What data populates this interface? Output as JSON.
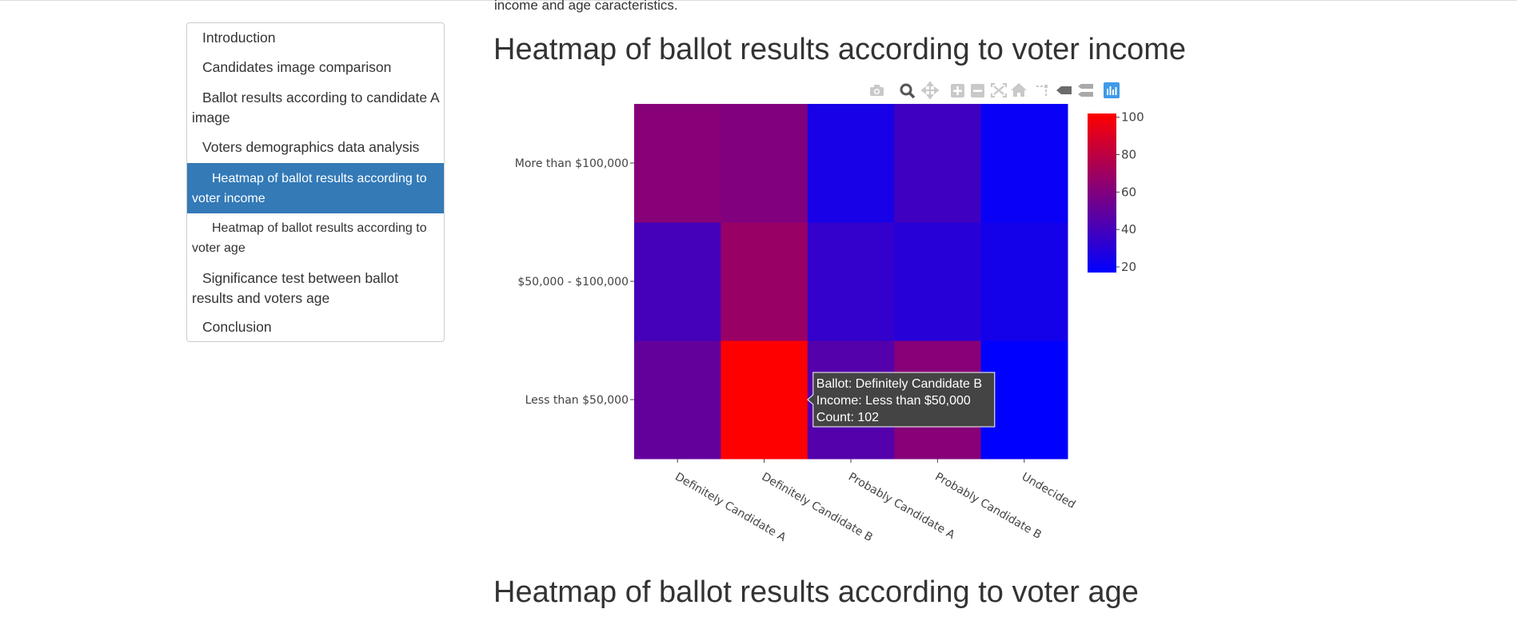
{
  "page": {
    "intro_tail": "income and age caracteristics.",
    "section_income_title": "Heatmap of ballot results according to voter income",
    "section_age_title": "Heatmap of ballot results according to voter age"
  },
  "toc": {
    "items": [
      {
        "label": "Introduction",
        "level": 1,
        "active": false
      },
      {
        "label": "Candidates image comparison",
        "level": 1,
        "active": false
      },
      {
        "label": "Ballot results according to candidate A image",
        "level": 1,
        "active": false
      },
      {
        "label": "Voters demographics data analysis",
        "level": 1,
        "active": false
      },
      {
        "label": "Heatmap of ballot results according to voter income",
        "level": 2,
        "active": true
      },
      {
        "label": "Heatmap of ballot results according to voter age",
        "level": 2,
        "active": false
      },
      {
        "label": "Significance test between ballot results and voters age",
        "level": 1,
        "active": false
      },
      {
        "label": "Conclusion",
        "level": 1,
        "active": false
      }
    ],
    "active_color": "#337ab7"
  },
  "modebar": {
    "buttons": [
      "camera-icon",
      "zoom-icon",
      "pan-icon",
      "zoom-in-icon",
      "zoom-out-icon",
      "autoscale-icon",
      "reset-axes-icon",
      "spike-lines-icon",
      "hover-closest-icon",
      "hover-compare-icon",
      "plotly-logo-icon"
    ],
    "active_button": "zoom-icon",
    "logo_color": "#3f9ae8"
  },
  "chart_data": {
    "type": "heatmap",
    "x": [
      "Definitely Candidate A",
      "Definitely Candidate B",
      "Probably Candidate A",
      "Probably Candidate B",
      "Undecided"
    ],
    "y": [
      "Less than $50,000",
      "$50,000 - $100,000",
      "More than $100,000"
    ],
    "z": [
      [
        50,
        102,
        45,
        62,
        17
      ],
      [
        40,
        68,
        34,
        30,
        24
      ],
      [
        62,
        60,
        25,
        38,
        20
      ]
    ],
    "colorscale": {
      "low": "#0000ff",
      "high": "#ff0000"
    },
    "zmin": 17,
    "zmax": 102,
    "colorbar_ticks": [
      20,
      40,
      60,
      80,
      100
    ],
    "tooltip": {
      "category": "Definitely Candidate B",
      "series": "Less than $50,000",
      "lines": [
        "Ballot: Definitely Candidate B",
        "Income: Less than $50,000",
        "Count: 102"
      ]
    }
  }
}
